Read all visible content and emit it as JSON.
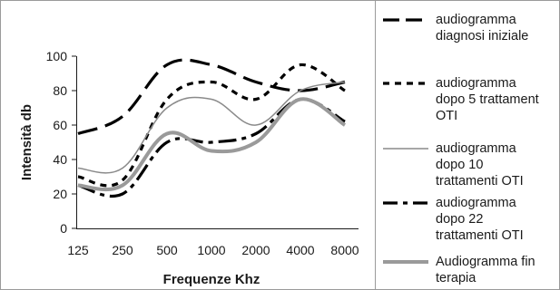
{
  "chart_data": {
    "type": "line",
    "title": "",
    "xlabel": "Frequenze Khz",
    "ylabel": "Intensità db",
    "x": [
      "125",
      "250",
      "500",
      "1000",
      "2000",
      "4000",
      "8000"
    ],
    "ylim": [
      0,
      100
    ],
    "yticks": [
      "0",
      "20",
      "40",
      "60",
      "80",
      "100"
    ],
    "grid": false,
    "legend_position": "right",
    "series": [
      {
        "name": "audiogramma diagnosi iniziale",
        "legend_lines": [
          "audiogramma",
          "diagnosi iniziale"
        ],
        "style": "long-dash",
        "color": "#000000",
        "values": [
          55,
          65,
          95,
          95,
          85,
          80,
          85
        ]
      },
      {
        "name": "audiogramma dopo 5 trattamenti OTI",
        "legend_lines": [
          "audiogramma",
          "dopo 5 trattament",
          "OTI"
        ],
        "style": "short-dash",
        "color": "#000000",
        "values": [
          30,
          28,
          75,
          85,
          75,
          95,
          80
        ]
      },
      {
        "name": "audiogramma dopo 10 trattamenti OTI",
        "legend_lines": [
          "audiogramma",
          "dopo 10",
          "trattamenti OTI"
        ],
        "style": "thin-solid",
        "color": "#8a8a8a",
        "values": [
          35,
          35,
          70,
          75,
          60,
          80,
          85
        ]
      },
      {
        "name": "audiogramma dopo 22 trattamenti OTI",
        "legend_lines": [
          "audiogramma",
          "dopo 22",
          "trattamenti OTI"
        ],
        "style": "dash-dot",
        "color": "#000000",
        "values": [
          25,
          20,
          50,
          50,
          55,
          75,
          62
        ]
      },
      {
        "name": "Audiogramma fine terapia",
        "legend_lines": [
          "Audiogramma fin",
          "terapia"
        ],
        "style": "thick-solid",
        "color": "#9a9a9a",
        "values": [
          25,
          25,
          55,
          45,
          50,
          75,
          60
        ]
      }
    ]
  }
}
